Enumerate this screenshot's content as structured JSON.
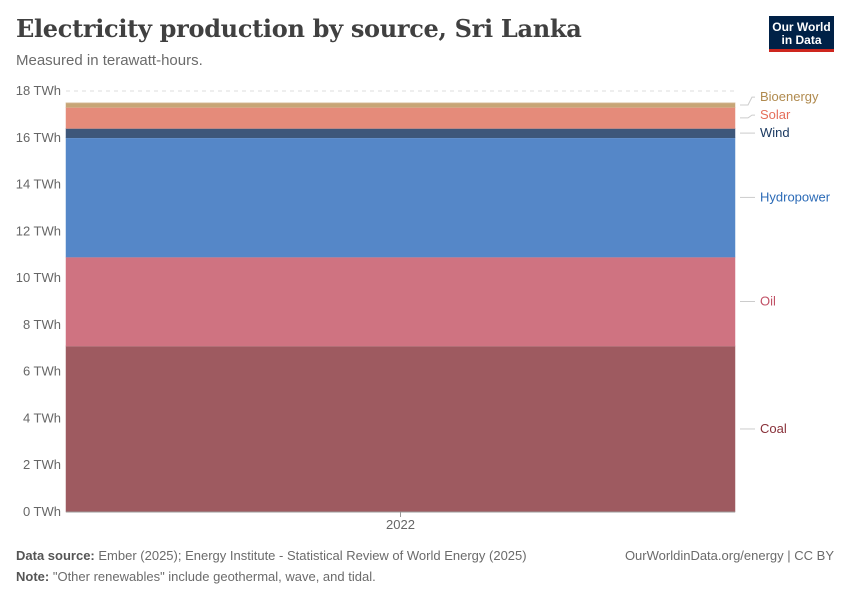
{
  "header": {
    "title": "Electricity production by source, Sri Lanka",
    "subtitle": "Measured in terawatt-hours.",
    "logo_line1": "Our World",
    "logo_line2": "in Data"
  },
  "footer": {
    "source_label": "Data source:",
    "source_text": "Ember (2025); Energy Institute - Statistical Review of World Energy (2025)",
    "note_label": "Note:",
    "note_text": "\"Other renewables\" include geothermal, wave, and tidal.",
    "credit": "OurWorldinData.org/energy | CC BY"
  },
  "chart_data": {
    "type": "area",
    "stacked": true,
    "x": [
      2022
    ],
    "x_tick_labels": [
      "2022"
    ],
    "ylim": [
      0,
      18
    ],
    "y_ticks": [
      0,
      2,
      4,
      6,
      8,
      10,
      12,
      14,
      16,
      18
    ],
    "y_unit": " TWh",
    "grid": "horizontal dashed",
    "legend_placement": "right",
    "series": [
      {
        "name": "Coal",
        "values": [
          7.1
        ],
        "color": "#9e5a60",
        "label_color": "#883039"
      },
      {
        "name": "Oil",
        "values": [
          3.8
        ],
        "color": "#cf7381",
        "label_color": "#c15065"
      },
      {
        "name": "Hydropower",
        "values": [
          5.1
        ],
        "color": "#5587c8",
        "label_color": "#2c6bb7"
      },
      {
        "name": "Wind",
        "values": [
          0.4
        ],
        "color": "#3e577a",
        "label_color": "#18375f"
      },
      {
        "name": "Solar",
        "values": [
          0.9
        ],
        "color": "#e58b7a",
        "label_color": "#e56e5a"
      },
      {
        "name": "Bioenergy",
        "values": [
          0.2
        ],
        "color": "#c7a576",
        "label_color": "#b08a4e"
      }
    ]
  }
}
